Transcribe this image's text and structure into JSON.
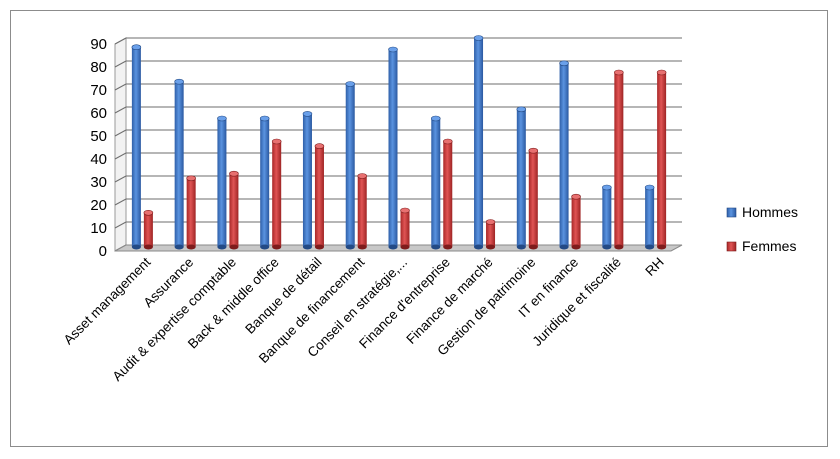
{
  "chart_data": {
    "type": "bar",
    "title": "",
    "xlabel": "",
    "ylabel": "",
    "ylim": [
      0,
      90
    ],
    "yticks": [
      0,
      10,
      20,
      30,
      40,
      50,
      60,
      70,
      80,
      90
    ],
    "grid": true,
    "legend_position": "right",
    "categories": [
      "Asset management",
      "Assurance",
      "Audit & expertise comptable",
      "Back & middle office",
      "Banque de détail",
      "Banque de financement",
      "Conseil en stratégie,...",
      "Finance d'entreprise",
      "Finance de marché",
      "Gestion de patrimoine",
      "IT en finance",
      "Juridique et fiscalité",
      "RH"
    ],
    "series": [
      {
        "name": "Hommes",
        "color": "#3f76c4",
        "values": [
          86,
          71,
          55,
          55,
          57,
          70,
          85,
          55,
          90,
          59,
          79,
          25,
          25
        ]
      },
      {
        "name": "Femmes",
        "color": "#c93a3a",
        "values": [
          14,
          29,
          31,
          45,
          43,
          30,
          15,
          45,
          10,
          41,
          21,
          75,
          75
        ]
      }
    ]
  }
}
